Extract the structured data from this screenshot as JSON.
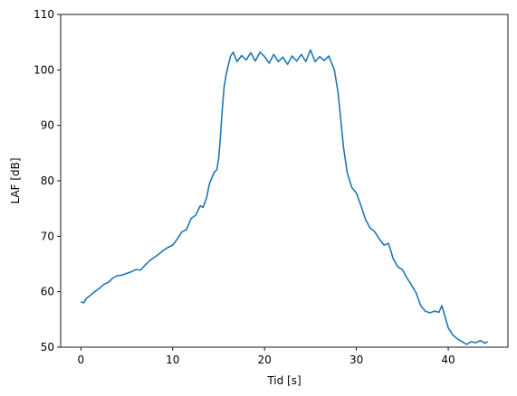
{
  "chart_data": {
    "type": "line",
    "title": "",
    "xlabel": "Tid [s]",
    "ylabel": "LAF [dB]",
    "xlim": [
      -2.2,
      46.5
    ],
    "ylim": [
      50,
      110
    ],
    "xticks": [
      0,
      10,
      20,
      30,
      40
    ],
    "yticks": [
      50,
      60,
      70,
      80,
      90,
      100,
      110
    ],
    "xtick_labels": [
      "0",
      "10",
      "20",
      "30",
      "40"
    ],
    "ytick_labels": [
      "50",
      "60",
      "70",
      "80",
      "90",
      "100",
      "110"
    ],
    "grid": false,
    "legend": false,
    "color": "#1f77b4",
    "series": [
      {
        "x": [
          0,
          0.3,
          0.6,
          1,
          1.5,
          2,
          2.5,
          3,
          3.5,
          4,
          4.5,
          5,
          5.5,
          6,
          6.5,
          7,
          7.5,
          8,
          8.5,
          9,
          9.5,
          10,
          10.5,
          11,
          11.5,
          12,
          12.5,
          13,
          13.3,
          13.7,
          14,
          14.5,
          14.8,
          15,
          15.2,
          15.4,
          15.6,
          15.8,
          16,
          16.3,
          16.6,
          17,
          17.5,
          18,
          18.5,
          19,
          19.5,
          20,
          20.5,
          21,
          21.5,
          22,
          22.5,
          23,
          23.5,
          24,
          24.5,
          25,
          25.5,
          26,
          26.5,
          27,
          27.3,
          27.6,
          28,
          28.3,
          28.6,
          29,
          29.5,
          30,
          30.5,
          31,
          31.5,
          32,
          32.5,
          33,
          33.5,
          34,
          34.5,
          35,
          35.5,
          36,
          36.5,
          37,
          37.5,
          38,
          38.5,
          39,
          39.3,
          39.6,
          40,
          40.5,
          41,
          41.5,
          42,
          42.5,
          43,
          43.5,
          44,
          44.3
        ],
        "y": [
          58.2,
          58,
          58.8,
          59.3,
          60,
          60.6,
          61.3,
          61.7,
          62.5,
          62.9,
          63,
          63.3,
          63.6,
          64,
          63.9,
          64.8,
          65.6,
          66.2,
          66.8,
          67.5,
          68,
          68.4,
          69.5,
          70.8,
          71.2,
          73.2,
          73.8,
          75.5,
          75.2,
          77,
          79.5,
          81.5,
          82,
          84,
          88,
          93,
          97,
          99,
          100.5,
          102.5,
          103.2,
          101.5,
          102.6,
          101.8,
          103.1,
          101.6,
          103.2,
          102.4,
          101.2,
          102.8,
          101.5,
          102.3,
          101,
          102.5,
          101.6,
          102.8,
          101.5,
          103.6,
          101.5,
          102.4,
          101.7,
          102.5,
          101.2,
          100,
          96,
          91,
          86,
          81.5,
          78.8,
          77.8,
          75.5,
          73,
          71.5,
          70.8,
          69.5,
          68.4,
          68.7,
          66,
          64.5,
          64,
          62.5,
          61.2,
          59.8,
          57.5,
          56.5,
          56.2,
          56.5,
          56.3,
          57.5,
          55.8,
          53.5,
          52.2,
          51.5,
          51,
          50.5,
          51,
          50.8,
          51.2,
          50.7,
          51
        ]
      }
    ]
  }
}
